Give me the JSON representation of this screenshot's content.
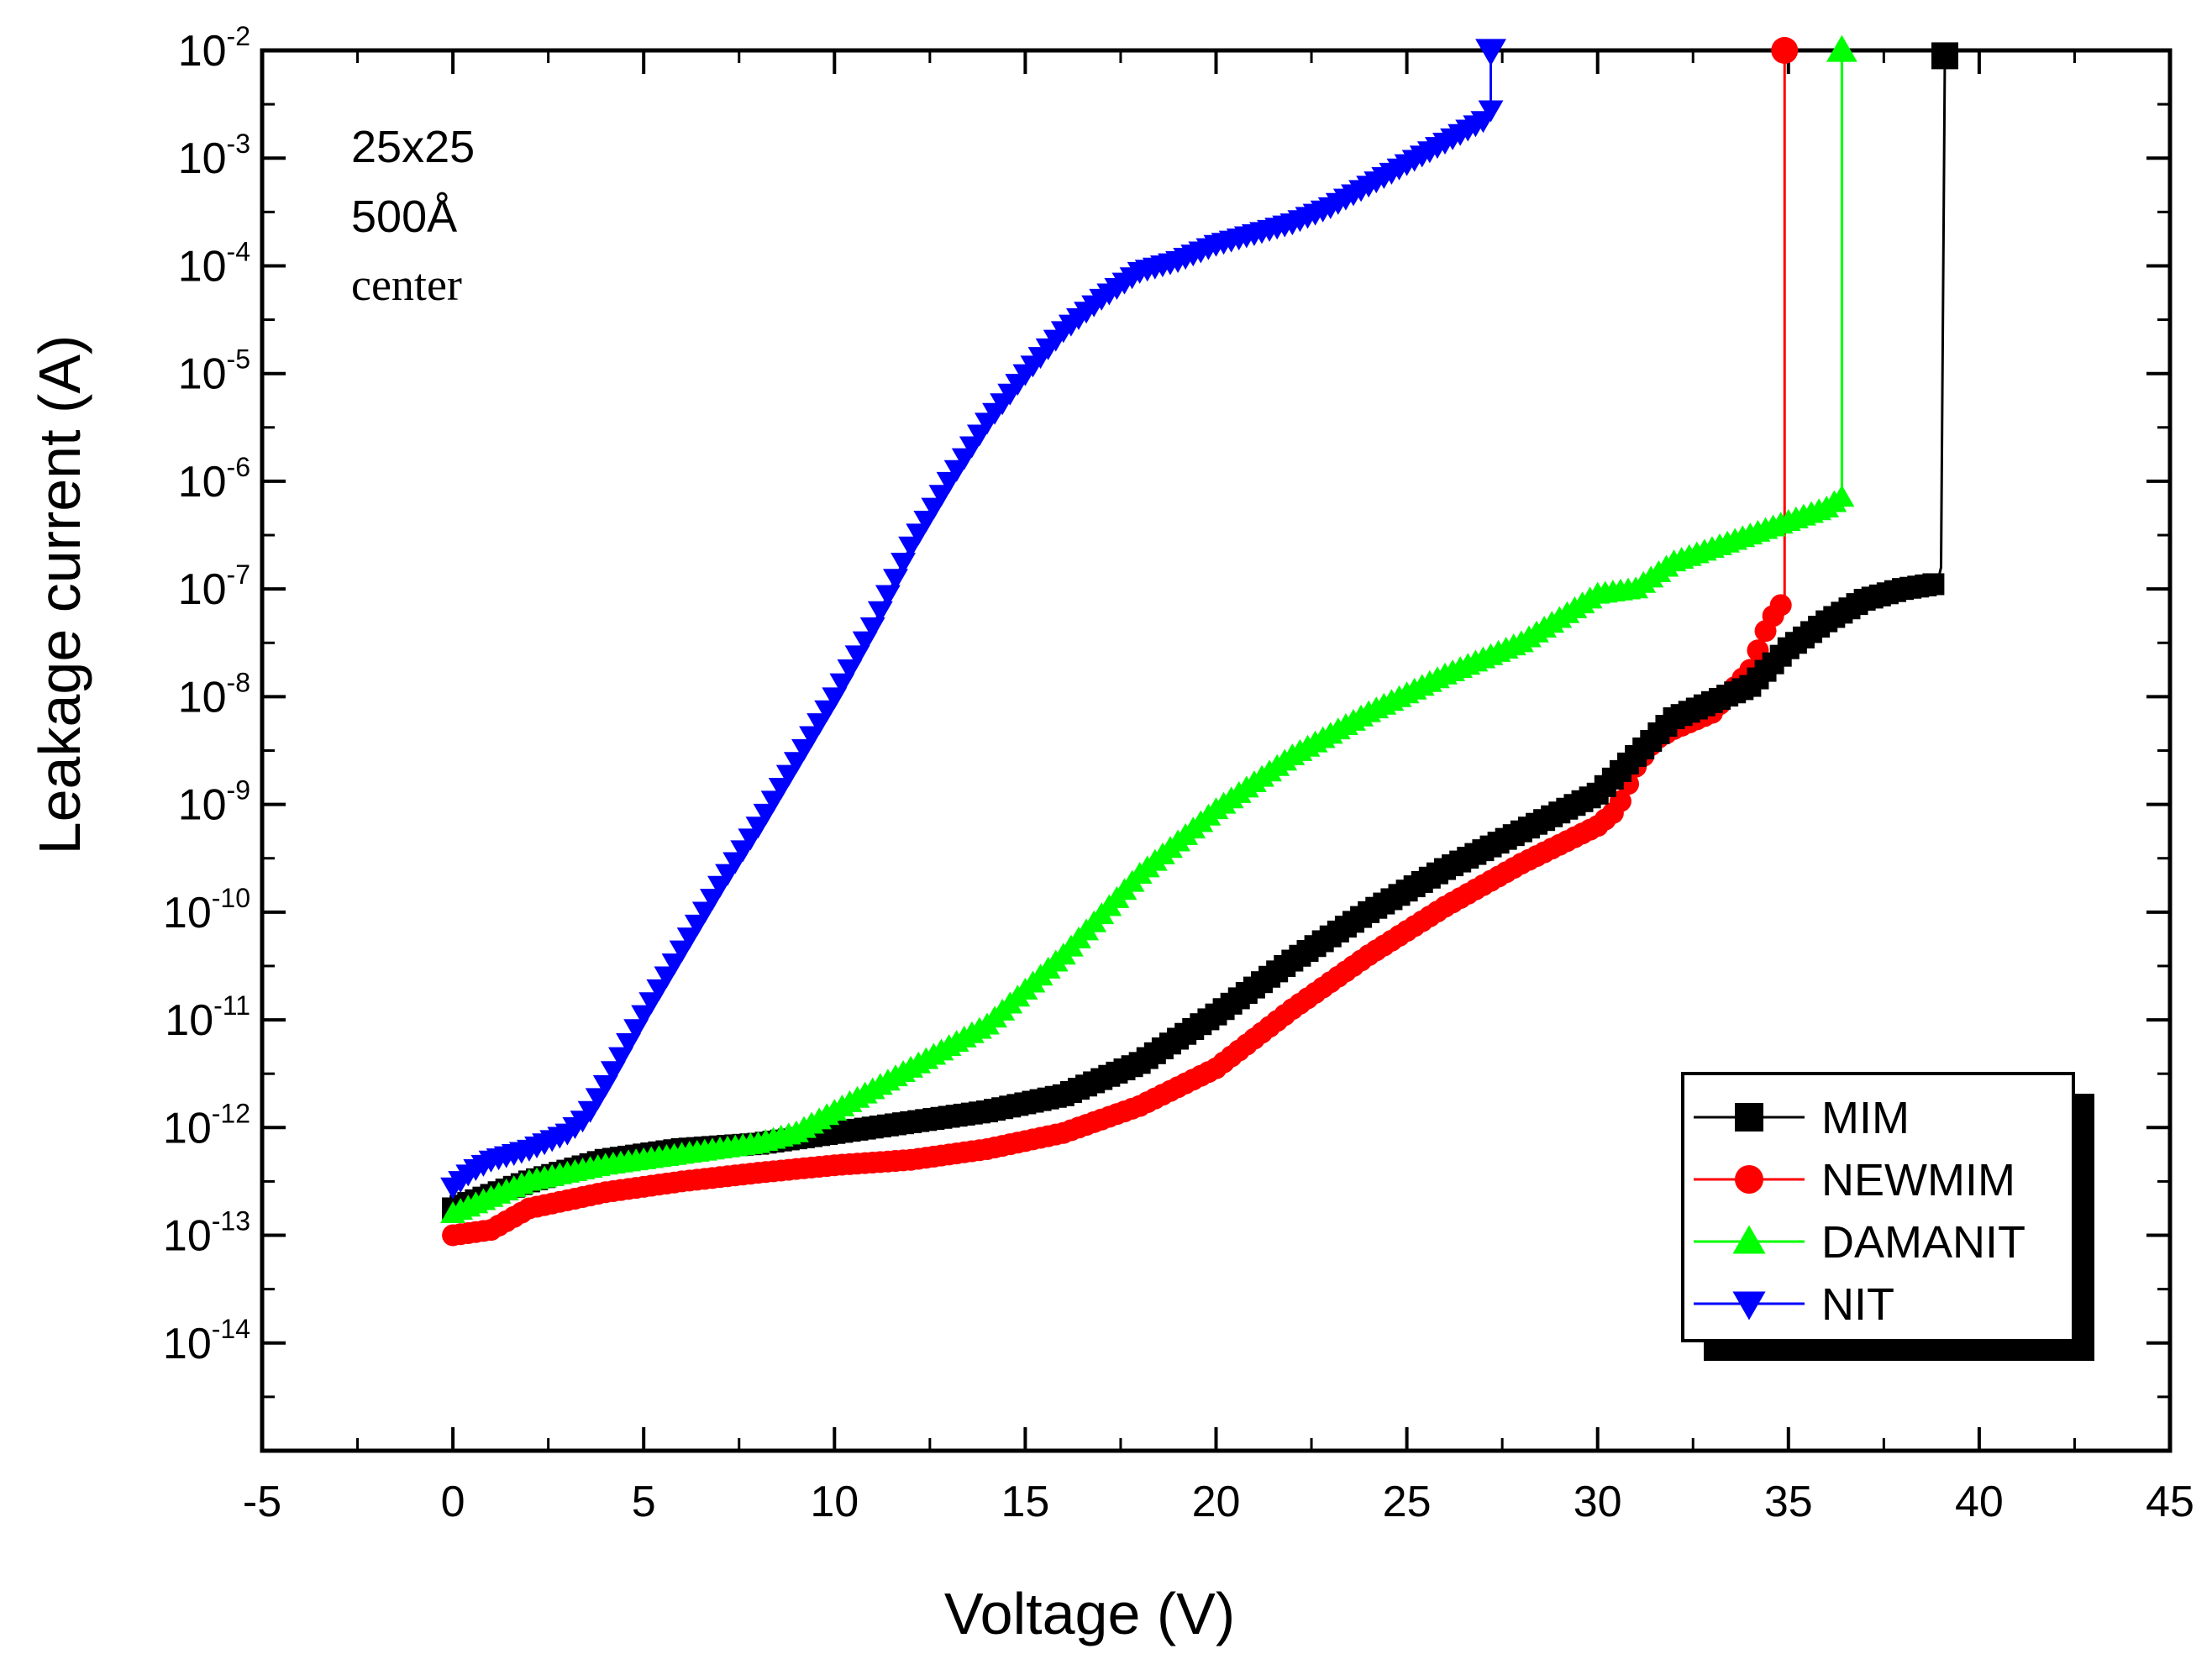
{
  "chart_data": {
    "type": "scatter",
    "title": "",
    "xlabel": "Voltage (V)",
    "ylabel": "Leakage current (A)",
    "xlim": [
      -5,
      45
    ],
    "ylim_log10": [
      -15,
      -2
    ],
    "yscale": "log",
    "x_ticks": [
      -5,
      0,
      5,
      10,
      15,
      20,
      25,
      30,
      35,
      40,
      45
    ],
    "y_tick_exponents": [
      -14,
      -13,
      -12,
      -11,
      -10,
      -9,
      -8,
      -7,
      -6,
      -5,
      -4,
      -3,
      -2
    ],
    "y_tick_base": "10",
    "grid": false,
    "legend_position": "bottom-right",
    "annotations": [
      "25x25",
      "500Å",
      "center"
    ],
    "series": [
      {
        "name": "MIM",
        "color": "#000000",
        "marker": "square",
        "x": [
          0,
          2,
          4,
          6,
          8,
          10,
          12,
          14,
          16,
          18,
          20,
          22,
          24,
          26,
          28,
          30,
          31,
          32,
          33,
          34,
          35,
          36,
          37,
          38,
          38.9,
          39.0,
          39.1
        ],
        "log10_y": [
          -12.75,
          -12.5,
          -12.3,
          -12.2,
          -12.15,
          -12.05,
          -11.95,
          -11.85,
          -11.7,
          -11.4,
          -10.95,
          -10.45,
          -10.0,
          -9.6,
          -9.25,
          -8.9,
          -8.55,
          -8.2,
          -8.05,
          -7.9,
          -7.55,
          -7.3,
          -7.1,
          -7.0,
          -6.95,
          -6.8,
          -2.05
        ]
      },
      {
        "name": "NEWMIM",
        "color": "#ff0000",
        "marker": "circle",
        "x": [
          0,
          1,
          2,
          4,
          6,
          8,
          10,
          12,
          14,
          16,
          18,
          20,
          22,
          24,
          26,
          28,
          30,
          30.5,
          31,
          31.5,
          32,
          33,
          34,
          34.5,
          34.9,
          34.9
        ],
        "log10_y": [
          -13.0,
          -12.95,
          -12.75,
          -12.6,
          -12.5,
          -12.42,
          -12.35,
          -12.3,
          -12.2,
          -12.05,
          -11.8,
          -11.45,
          -10.9,
          -10.4,
          -9.95,
          -9.55,
          -9.2,
          -9.05,
          -8.65,
          -8.4,
          -8.3,
          -8.15,
          -7.75,
          -7.3,
          -7.1,
          -2.0
        ]
      },
      {
        "name": "DAMANIT",
        "color": "#00ff00",
        "marker": "triangle-up",
        "x": [
          0,
          2,
          4,
          6,
          8,
          9,
          10,
          12,
          14,
          16,
          18,
          20,
          22,
          24,
          26,
          28,
          30,
          31,
          32,
          34,
          36,
          36.4,
          36.4
        ],
        "log10_y": [
          -12.8,
          -12.5,
          -12.35,
          -12.25,
          -12.15,
          -12.05,
          -11.85,
          -11.45,
          -11.05,
          -10.4,
          -9.65,
          -9.05,
          -8.55,
          -8.15,
          -7.8,
          -7.5,
          -7.05,
          -7.0,
          -6.75,
          -6.5,
          -6.25,
          -6.15,
          -2.0
        ]
      },
      {
        "name": "NIT",
        "color": "#0000ff",
        "marker": "triangle-down",
        "x": [
          0,
          0.5,
          1,
          2,
          3,
          3.5,
          4,
          5,
          6,
          7,
          8,
          9,
          10,
          11,
          12,
          13,
          14,
          15,
          16,
          17,
          18,
          19,
          20,
          21,
          22,
          23,
          24,
          25,
          26,
          27,
          27.2,
          27.2
        ],
        "log10_y": [
          -12.55,
          -12.4,
          -12.3,
          -12.2,
          -12.05,
          -11.9,
          -11.6,
          -10.95,
          -10.35,
          -9.75,
          -9.2,
          -8.6,
          -8.0,
          -7.35,
          -6.6,
          -6.0,
          -5.45,
          -5.0,
          -4.6,
          -4.3,
          -4.05,
          -3.95,
          -3.8,
          -3.7,
          -3.6,
          -3.45,
          -3.25,
          -3.05,
          -2.85,
          -2.65,
          -2.55,
          -2.0
        ]
      }
    ]
  }
}
